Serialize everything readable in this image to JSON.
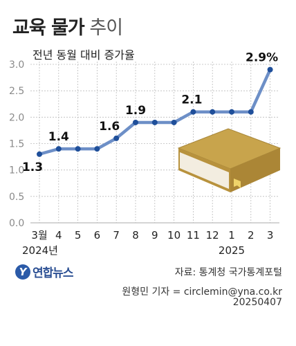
{
  "header": {
    "title_bold": "교육 물가",
    "title_light": "추이",
    "subtitle": "전년 동월 대비 증가율"
  },
  "footer": {
    "logo_text": "연합뉴스",
    "source": "자료: 통계청 국가통계포털",
    "credit": "원형민 기자 = circlemin@yna.co.kr",
    "date": "20250407"
  },
  "colors": {
    "line": "#6d8fc7",
    "point": "#1f4f9a",
    "grid": "#bbbbbb",
    "axis_label": "#8a8a8a",
    "book_cover": "#c8a44c",
    "book_pages": "#f3ede0"
  },
  "illustration": "book-icon",
  "chart_data": {
    "type": "line",
    "categories": [
      "3월",
      "4",
      "5",
      "6",
      "7",
      "8",
      "9",
      "10",
      "11",
      "12",
      "1",
      "2",
      "3"
    ],
    "year_labels": [
      {
        "index": 0,
        "text": "2024년"
      },
      {
        "index": 10,
        "text": "2025"
      }
    ],
    "series": [
      {
        "values": [
          1.3,
          1.4,
          1.4,
          1.4,
          1.6,
          1.9,
          1.9,
          1.9,
          2.1,
          2.1,
          2.1,
          2.1,
          2.9
        ]
      }
    ],
    "data_labels": [
      {
        "index": 0,
        "text": "1.3"
      },
      {
        "index": 1,
        "text": "1.4"
      },
      {
        "index": 4,
        "text": "1.6"
      },
      {
        "index": 5,
        "text": "1.9"
      },
      {
        "index": 8,
        "text": "2.1"
      },
      {
        "index": 12,
        "text": "2.9%"
      }
    ],
    "yticks": [
      "0.0",
      "0.5",
      "1.0",
      "1.5",
      "2.0",
      "2.5",
      "3.0"
    ],
    "ylim": [
      0,
      3.0
    ],
    "grid": true,
    "title": "교육 물가 추이",
    "ylabel": "전년 동월 대비 증가율"
  }
}
